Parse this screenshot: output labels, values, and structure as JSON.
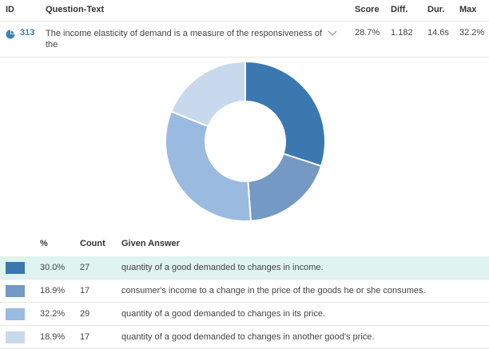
{
  "header": {
    "id": "ID",
    "question": "Question-Text",
    "score": "Score",
    "diff": "Diff.",
    "dur": "Dur.",
    "max": "Max"
  },
  "question": {
    "id": "313",
    "text": "The income elasticity of demand is a measure of the responsiveness of the",
    "score": "28.7%",
    "diff": "1.182",
    "dur": "14.6s",
    "max": "32.2%"
  },
  "answers_table": {
    "col_percent": "%",
    "col_count": "Count",
    "col_answer": "Given Answer"
  },
  "chart_data": {
    "type": "pie",
    "values": [
      30.0,
      18.9,
      32.2,
      18.9
    ],
    "colors": [
      "#3b78b0",
      "#7399c4",
      "#9bbae0",
      "#c9d9ed"
    ]
  },
  "answers": [
    {
      "percent": "30.0%",
      "count": "27",
      "text": "quantity of a good demanded to changes in income.",
      "color": "#3b78b0",
      "highlighted": true
    },
    {
      "percent": "18.9%",
      "count": "17",
      "text": "consumer's income to a change in the price of the goods he or she consumes.",
      "color": "#7399c4",
      "highlighted": false
    },
    {
      "percent": "32.2%",
      "count": "29",
      "text": "quantity of a good demanded to changes in its price.",
      "color": "#9bbae0",
      "highlighted": false
    },
    {
      "percent": "18.9%",
      "count": "17",
      "text": "quantity of a good demanded to changes in another good's price.",
      "color": "#c9d9ed",
      "highlighted": false
    }
  ]
}
